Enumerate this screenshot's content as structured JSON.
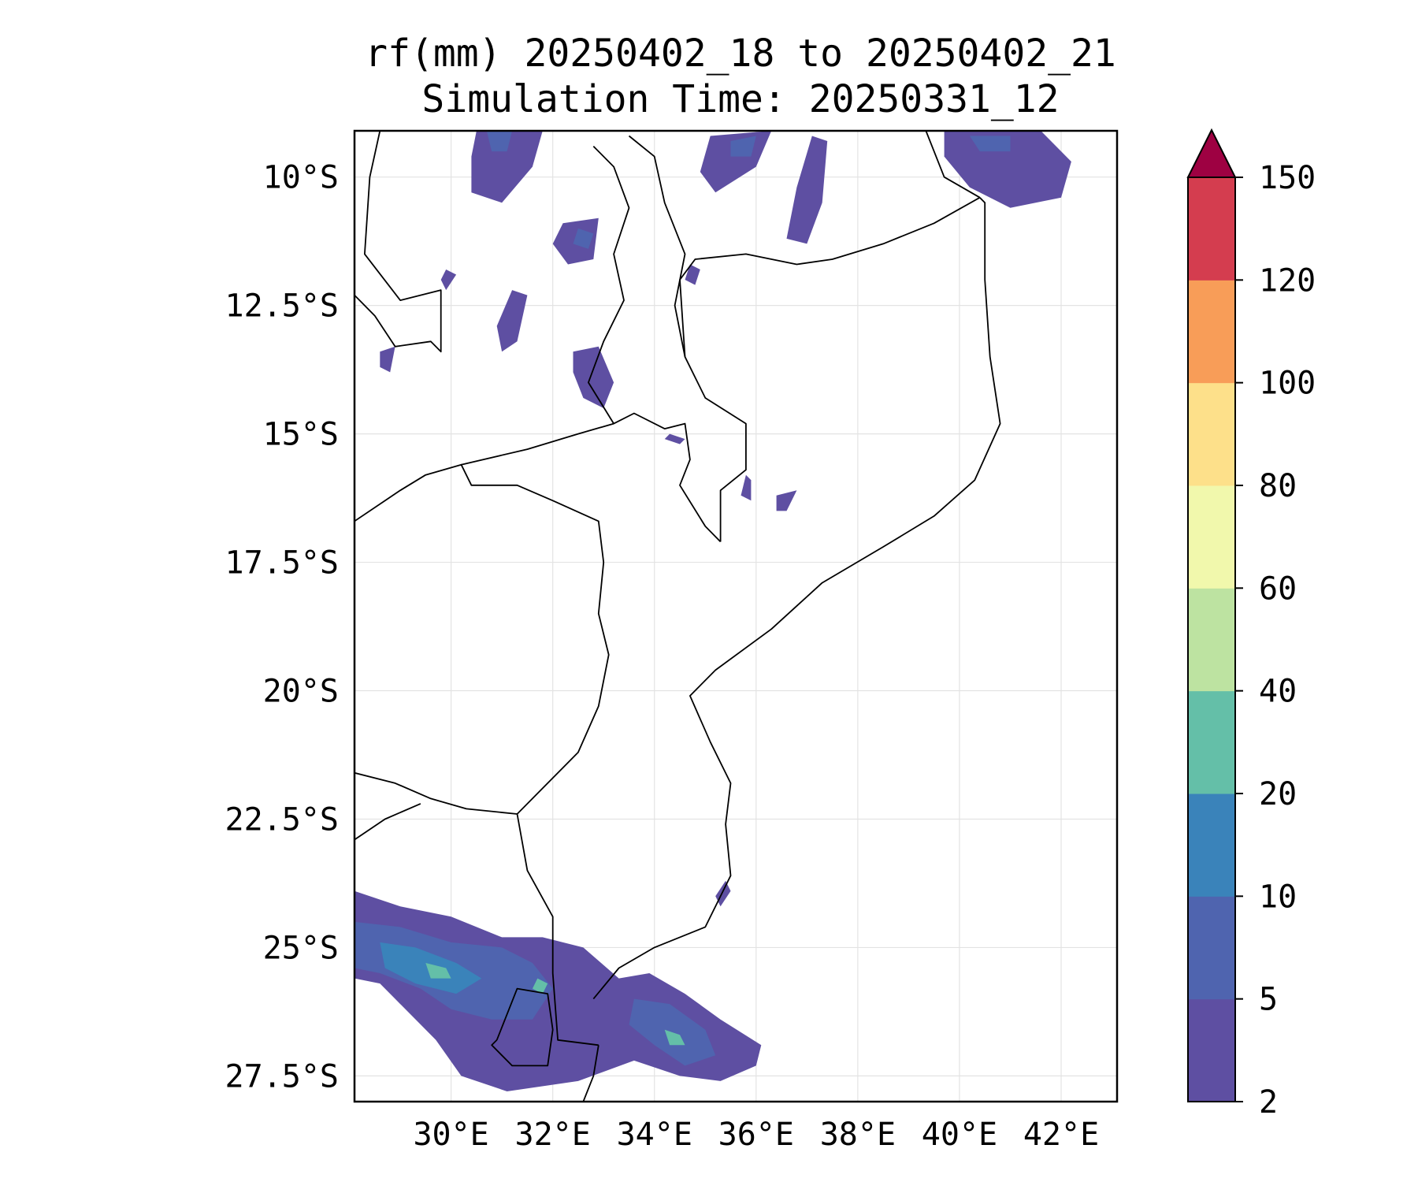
{
  "title": {
    "line1": "rf(mm) 20250402_18 to 20250402_21",
    "line2": "Simulation Time: 20250331_12"
  },
  "map": {
    "lon_range": [
      28.1,
      43.1
    ],
    "lat_range": [
      -28.0,
      -9.1
    ],
    "lat_ticks": [
      {
        "value": -10.0,
        "label": "10°S"
      },
      {
        "value": -12.5,
        "label": "12.5°S"
      },
      {
        "value": -15.0,
        "label": "15°S"
      },
      {
        "value": -17.5,
        "label": "17.5°S"
      },
      {
        "value": -20.0,
        "label": "20°S"
      },
      {
        "value": -22.5,
        "label": "22.5°S"
      },
      {
        "value": -25.0,
        "label": "25°S"
      },
      {
        "value": -27.5,
        "label": "27.5°S"
      }
    ],
    "lon_ticks": [
      {
        "value": 30,
        "label": "30°E"
      },
      {
        "value": 32,
        "label": "32°E"
      },
      {
        "value": 34,
        "label": "34°E"
      },
      {
        "value": 36,
        "label": "36°E"
      },
      {
        "value": 38,
        "label": "38°E"
      },
      {
        "value": 40,
        "label": "40°E"
      },
      {
        "value": 42,
        "label": "42°E"
      }
    ],
    "gridlines": true,
    "borders": [
      [
        [
          28.1,
          -16.7
        ],
        [
          29.0,
          -16.1
        ],
        [
          29.5,
          -15.8
        ],
        [
          30.2,
          -15.6
        ],
        [
          30.4,
          -16.0
        ],
        [
          31.3,
          -16.0
        ],
        [
          32.0,
          -16.3
        ],
        [
          32.9,
          -16.7
        ],
        [
          33.0,
          -17.5
        ],
        [
          32.9,
          -18.5
        ],
        [
          33.1,
          -19.3
        ],
        [
          32.9,
          -20.3
        ],
        [
          32.5,
          -21.2
        ],
        [
          31.3,
          -22.4
        ]
      ],
      [
        [
          31.3,
          -22.4
        ],
        [
          31.5,
          -23.5
        ],
        [
          32.0,
          -24.4
        ],
        [
          32.0,
          -25.5
        ],
        [
          32.1,
          -26.8
        ],
        [
          32.9,
          -26.9
        ]
      ],
      [
        [
          32.9,
          -26.9
        ],
        [
          32.8,
          -27.5
        ],
        [
          32.6,
          -28.0
        ]
      ],
      [
        [
          30.2,
          -15.6
        ],
        [
          31.5,
          -15.3
        ],
        [
          32.5,
          -15.0
        ],
        [
          33.2,
          -14.8
        ],
        [
          33.6,
          -14.6
        ],
        [
          34.2,
          -14.9
        ],
        [
          34.6,
          -14.8
        ],
        [
          34.7,
          -15.5
        ],
        [
          34.5,
          -16.0
        ],
        [
          35.0,
          -16.8
        ],
        [
          35.3,
          -17.1
        ]
      ],
      [
        [
          35.3,
          -17.1
        ],
        [
          35.3,
          -16.1
        ],
        [
          35.8,
          -15.7
        ],
        [
          35.8,
          -14.8
        ],
        [
          35.0,
          -14.3
        ],
        [
          34.6,
          -13.5
        ],
        [
          34.5,
          -12.0
        ],
        [
          34.8,
          -11.6
        ],
        [
          35.8,
          -11.5
        ],
        [
          36.8,
          -11.7
        ],
        [
          37.5,
          -11.6
        ],
        [
          38.5,
          -11.3
        ],
        [
          39.5,
          -10.9
        ],
        [
          40.4,
          -10.4
        ]
      ],
      [
        [
          33.2,
          -14.8
        ],
        [
          32.7,
          -14.0
        ],
        [
          33.0,
          -13.2
        ],
        [
          33.4,
          -12.4
        ],
        [
          33.2,
          -11.5
        ],
        [
          33.5,
          -10.6
        ],
        [
          33.2,
          -9.8
        ],
        [
          32.8,
          -9.4
        ]
      ],
      [
        [
          34.6,
          -13.5
        ],
        [
          34.4,
          -12.5
        ],
        [
          34.6,
          -11.5
        ],
        [
          34.2,
          -10.5
        ],
        [
          34.0,
          -9.6
        ],
        [
          33.5,
          -9.2
        ]
      ],
      [
        [
          40.4,
          -10.4
        ],
        [
          39.7,
          -10.0
        ],
        [
          39.3,
          -9.0
        ]
      ],
      [
        [
          28.1,
          -12.3
        ],
        [
          28.5,
          -12.7
        ],
        [
          28.9,
          -13.3
        ],
        [
          29.6,
          -13.2
        ],
        [
          29.8,
          -13.4
        ],
        [
          29.8,
          -12.2
        ],
        [
          29.0,
          -12.4
        ],
        [
          28.3,
          -11.5
        ],
        [
          28.4,
          -10.0
        ],
        [
          28.6,
          -9.1
        ]
      ],
      [
        [
          28.1,
          -21.6
        ],
        [
          28.9,
          -21.8
        ],
        [
          29.6,
          -22.1
        ],
        [
          30.3,
          -22.3
        ],
        [
          31.3,
          -22.4
        ]
      ],
      [
        [
          28.1,
          -22.9
        ],
        [
          28.7,
          -22.5
        ],
        [
          29.4,
          -22.2
        ]
      ],
      [
        [
          30.9,
          -26.8
        ],
        [
          31.3,
          -25.8
        ],
        [
          31.9,
          -25.9
        ],
        [
          32.0,
          -26.6
        ],
        [
          31.9,
          -27.3
        ],
        [
          31.2,
          -27.3
        ],
        [
          30.8,
          -26.9
        ],
        [
          30.9,
          -26.8
        ]
      ],
      [
        [
          32.8,
          -26.0
        ],
        [
          33.3,
          -25.4
        ],
        [
          34.0,
          -25.0
        ],
        [
          35.0,
          -24.6
        ],
        [
          35.5,
          -23.6
        ],
        [
          35.4,
          -22.6
        ],
        [
          35.5,
          -21.8
        ],
        [
          35.1,
          -21.0
        ],
        [
          34.7,
          -20.1
        ],
        [
          35.2,
          -19.6
        ],
        [
          36.3,
          -18.8
        ],
        [
          37.3,
          -17.9
        ],
        [
          38.5,
          -17.2
        ],
        [
          39.5,
          -16.6
        ],
        [
          40.3,
          -15.9
        ],
        [
          40.8,
          -14.8
        ],
        [
          40.6,
          -13.5
        ],
        [
          40.5,
          -12.0
        ],
        [
          40.5,
          -10.5
        ],
        [
          40.4,
          -10.4
        ]
      ]
    ],
    "rain_bins": {
      "levels": [
        2,
        5,
        10,
        20,
        40,
        60,
        80,
        100,
        120,
        150
      ],
      "colors": [
        "#5e4fa2",
        "#4f64af",
        "#3a83ba",
        "#64bfa8",
        "#bde3a1",
        "#f1f8ac",
        "#fde08a",
        "#f89d58",
        "#d43d4f"
      ],
      "over_color": "#9e0142"
    },
    "rain_areas": [
      {
        "bin": 0,
        "pts": [
          [
            28.1,
            -23.9
          ],
          [
            29.0,
            -24.2
          ],
          [
            30.0,
            -24.4
          ],
          [
            31.0,
            -24.8
          ],
          [
            31.8,
            -24.8
          ],
          [
            32.6,
            -25.0
          ],
          [
            33.3,
            -25.6
          ],
          [
            33.9,
            -25.5
          ],
          [
            34.6,
            -25.9
          ],
          [
            35.3,
            -26.4
          ],
          [
            36.1,
            -26.9
          ],
          [
            36.0,
            -27.3
          ],
          [
            35.3,
            -27.6
          ],
          [
            34.5,
            -27.5
          ],
          [
            33.6,
            -27.2
          ],
          [
            32.5,
            -27.6
          ],
          [
            31.1,
            -27.8
          ],
          [
            30.2,
            -27.5
          ],
          [
            29.7,
            -26.8
          ],
          [
            28.6,
            -25.7
          ],
          [
            28.1,
            -25.6
          ]
        ]
      },
      {
        "bin": 1,
        "pts": [
          [
            28.1,
            -24.5
          ],
          [
            29.0,
            -24.6
          ],
          [
            30.0,
            -24.9
          ],
          [
            31.0,
            -25.0
          ],
          [
            31.6,
            -25.3
          ],
          [
            32.0,
            -25.8
          ],
          [
            31.6,
            -26.4
          ],
          [
            30.8,
            -26.4
          ],
          [
            30.0,
            -26.2
          ],
          [
            29.4,
            -25.8
          ],
          [
            28.6,
            -25.5
          ],
          [
            28.1,
            -25.4
          ]
        ]
      },
      {
        "bin": 1,
        "pts": [
          [
            33.6,
            -26.0
          ],
          [
            34.3,
            -26.1
          ],
          [
            35.0,
            -26.6
          ],
          [
            35.2,
            -27.1
          ],
          [
            34.6,
            -27.3
          ],
          [
            34.0,
            -26.9
          ],
          [
            33.5,
            -26.5
          ]
        ]
      },
      {
        "bin": 2,
        "pts": [
          [
            28.6,
            -24.9
          ],
          [
            29.3,
            -25.0
          ],
          [
            30.1,
            -25.3
          ],
          [
            30.6,
            -25.6
          ],
          [
            30.1,
            -25.9
          ],
          [
            29.3,
            -25.7
          ],
          [
            28.7,
            -25.4
          ]
        ]
      },
      {
        "bin": 3,
        "pts": [
          [
            29.5,
            -25.3
          ],
          [
            29.9,
            -25.4
          ],
          [
            30.0,
            -25.6
          ],
          [
            29.6,
            -25.6
          ]
        ]
      },
      {
        "bin": 3,
        "pts": [
          [
            34.2,
            -26.6
          ],
          [
            34.5,
            -26.7
          ],
          [
            34.6,
            -26.9
          ],
          [
            34.3,
            -26.9
          ]
        ]
      },
      {
        "bin": 3,
        "pts": [
          [
            31.7,
            -25.6
          ],
          [
            31.9,
            -25.7
          ],
          [
            31.8,
            -25.9
          ],
          [
            31.6,
            -25.8
          ]
        ]
      },
      {
        "bin": 0,
        "pts": [
          [
            30.5,
            -9.1
          ],
          [
            31.8,
            -9.1
          ],
          [
            31.6,
            -9.8
          ],
          [
            31.0,
            -10.5
          ],
          [
            30.4,
            -10.3
          ],
          [
            30.4,
            -9.6
          ]
        ]
      },
      {
        "bin": 1,
        "pts": [
          [
            30.7,
            -9.1
          ],
          [
            31.2,
            -9.1
          ],
          [
            31.1,
            -9.5
          ],
          [
            30.8,
            -9.5
          ]
        ]
      },
      {
        "bin": 0,
        "pts": [
          [
            32.2,
            -10.9
          ],
          [
            32.9,
            -10.8
          ],
          [
            32.8,
            -11.6
          ],
          [
            32.3,
            -11.7
          ],
          [
            32.0,
            -11.3
          ]
        ]
      },
      {
        "bin": 1,
        "pts": [
          [
            32.5,
            -11.0
          ],
          [
            32.8,
            -11.1
          ],
          [
            32.7,
            -11.4
          ],
          [
            32.4,
            -11.3
          ]
        ]
      },
      {
        "bin": 0,
        "pts": [
          [
            35.1,
            -9.2
          ],
          [
            36.3,
            -9.1
          ],
          [
            36.0,
            -9.8
          ],
          [
            35.2,
            -10.3
          ],
          [
            34.9,
            -9.9
          ]
        ]
      },
      {
        "bin": 1,
        "pts": [
          [
            35.5,
            -9.3
          ],
          [
            36.0,
            -9.2
          ],
          [
            35.9,
            -9.6
          ],
          [
            35.5,
            -9.6
          ]
        ]
      },
      {
        "bin": 0,
        "pts": [
          [
            37.1,
            -9.2
          ],
          [
            37.4,
            -9.3
          ],
          [
            37.3,
            -10.5
          ],
          [
            37.0,
            -11.3
          ],
          [
            36.6,
            -11.2
          ],
          [
            36.8,
            -10.2
          ]
        ]
      },
      {
        "bin": 0,
        "pts": [
          [
            39.7,
            -9.1
          ],
          [
            41.6,
            -9.1
          ],
          [
            42.2,
            -9.7
          ],
          [
            42.0,
            -10.4
          ],
          [
            41.0,
            -10.6
          ],
          [
            40.2,
            -10.2
          ],
          [
            39.7,
            -9.6
          ]
        ]
      },
      {
        "bin": 1,
        "pts": [
          [
            40.2,
            -9.2
          ],
          [
            41.0,
            -9.2
          ],
          [
            41.0,
            -9.5
          ],
          [
            40.4,
            -9.5
          ]
        ]
      },
      {
        "bin": 0,
        "pts": [
          [
            31.2,
            -12.2
          ],
          [
            31.5,
            -12.3
          ],
          [
            31.3,
            -13.2
          ],
          [
            31.0,
            -13.4
          ],
          [
            30.9,
            -12.9
          ]
        ]
      },
      {
        "bin": 0,
        "pts": [
          [
            32.4,
            -13.4
          ],
          [
            32.9,
            -13.3
          ],
          [
            33.2,
            -14.0
          ],
          [
            33.0,
            -14.5
          ],
          [
            32.6,
            -14.3
          ],
          [
            32.4,
            -13.8
          ]
        ]
      },
      {
        "bin": 0,
        "pts": [
          [
            34.3,
            -15.0
          ],
          [
            34.6,
            -15.1
          ],
          [
            34.5,
            -15.2
          ],
          [
            34.2,
            -15.1
          ]
        ]
      },
      {
        "bin": 0,
        "pts": [
          [
            35.8,
            -15.8
          ],
          [
            35.9,
            -15.9
          ],
          [
            35.9,
            -16.3
          ],
          [
            35.7,
            -16.2
          ]
        ]
      },
      {
        "bin": 0,
        "pts": [
          [
            36.4,
            -16.2
          ],
          [
            36.8,
            -16.1
          ],
          [
            36.6,
            -16.5
          ],
          [
            36.4,
            -16.5
          ]
        ]
      },
      {
        "bin": 0,
        "pts": [
          [
            34.7,
            -11.7
          ],
          [
            34.9,
            -11.8
          ],
          [
            34.8,
            -12.1
          ],
          [
            34.6,
            -12.0
          ]
        ]
      },
      {
        "bin": 0,
        "pts": [
          [
            35.4,
            -23.7
          ],
          [
            35.5,
            -23.9
          ],
          [
            35.3,
            -24.2
          ],
          [
            35.2,
            -24.0
          ]
        ]
      },
      {
        "bin": 0,
        "pts": [
          [
            28.6,
            -13.4
          ],
          [
            28.9,
            -13.3
          ],
          [
            28.8,
            -13.8
          ],
          [
            28.6,
            -13.7
          ]
        ]
      },
      {
        "bin": 0,
        "pts": [
          [
            29.9,
            -11.8
          ],
          [
            30.1,
            -11.9
          ],
          [
            29.9,
            -12.2
          ],
          [
            29.8,
            -12.0
          ]
        ]
      }
    ]
  }
}
